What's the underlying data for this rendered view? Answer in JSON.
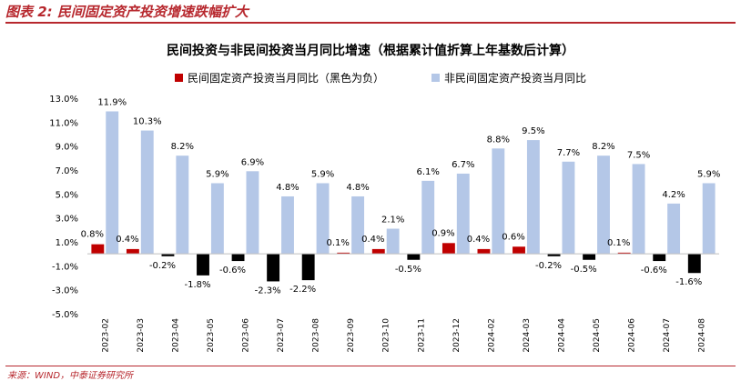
{
  "figure_caption": "图表 2: 民间固定资产投资增速跌幅扩大",
  "source_note": "来源：WIND，中泰证券研究所",
  "chart_data": {
    "type": "bar",
    "title": "民间投资与非民间投资当月同比增速（根据累计值折算上年基数后计算）",
    "categories": [
      "2023-02",
      "2023-03",
      "2023-04",
      "2023-05",
      "2023-06",
      "2023-07",
      "2023-08",
      "2023-09",
      "2023-10",
      "2023-11",
      "2023-12",
      "2024-02",
      "2024-03",
      "2024-04",
      "2024-05",
      "2024-06",
      "2024-07",
      "2024-08"
    ],
    "series": [
      {
        "name": "民间固定资产投资当月同比（黑色为负）",
        "values": [
          0.8,
          0.4,
          -0.2,
          -1.8,
          -0.6,
          -2.3,
          -2.2,
          0.1,
          0.4,
          -0.5,
          0.9,
          0.4,
          0.6,
          -0.2,
          -0.5,
          0.1,
          -0.6,
          -1.6
        ],
        "labels": [
          "0.8%",
          "0.4%",
          "-0.2%",
          "-1.8%",
          "-0.6%",
          "-2.3%",
          "-2.2%",
          "0.1%",
          "0.4%",
          "-0.5%",
          "0.9%",
          "0.4%",
          "0.6%",
          "-0.2%",
          "-0.5%",
          "0.1%",
          "-0.6%",
          "-1.6%"
        ],
        "color_positive": "#c00000",
        "color_negative": "#000000"
      },
      {
        "name": "非民间固定资产投资当月同比",
        "values": [
          11.9,
          10.3,
          8.2,
          5.9,
          6.9,
          4.8,
          5.9,
          4.8,
          2.1,
          6.1,
          6.7,
          8.8,
          9.5,
          7.7,
          8.2,
          7.5,
          4.2,
          5.9
        ],
        "labels": [
          "11.9%",
          "10.3%",
          "8.2%",
          "5.9%",
          "6.9%",
          "4.8%",
          "5.9%",
          "4.8%",
          "2.1%",
          "6.1%",
          "6.7%",
          "8.8%",
          "9.5%",
          "7.7%",
          "8.2%",
          "7.5%",
          "4.2%",
          "5.9%"
        ],
        "color": "#b4c7e7"
      }
    ],
    "ylim": [
      -5.0,
      13.0
    ],
    "yticks": [
      -5.0,
      -3.0,
      -1.0,
      1.0,
      3.0,
      5.0,
      7.0,
      9.0,
      11.0,
      13.0
    ],
    "ytick_labels": [
      "-5.0%",
      "-3.0%",
      "-1.0%",
      "1.0%",
      "3.0%",
      "5.0%",
      "7.0%",
      "9.0%",
      "11.0%",
      "13.0%"
    ],
    "xlabel": "",
    "ylabel": "",
    "grid": false,
    "legend_position": "top"
  }
}
